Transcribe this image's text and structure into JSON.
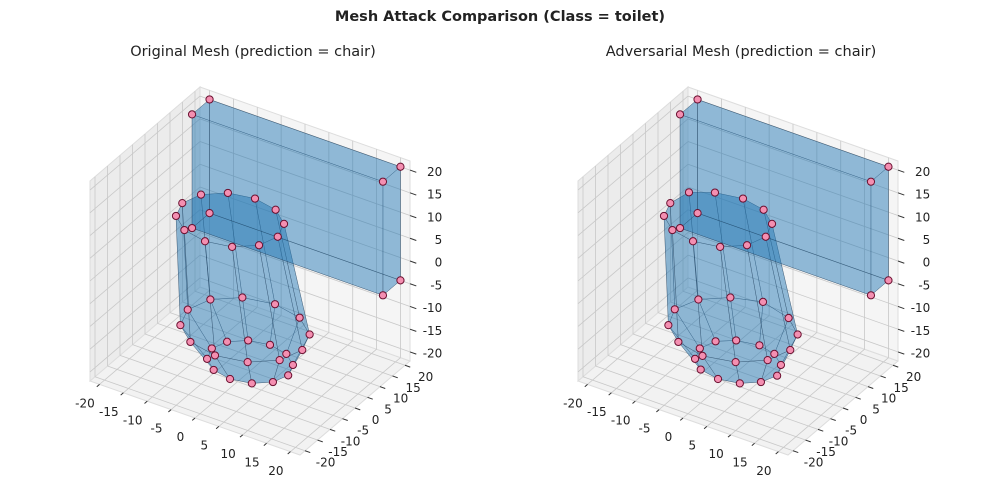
{
  "title": "Mesh Attack Comparison (Class = toilet)",
  "chart_data": [
    {
      "type": "scatter3d",
      "title": "Original Mesh (prediction = chair)",
      "color": "#f48fb1",
      "edgecolor": "#6b1030",
      "mesh_color": "#1f77b4",
      "x": [
        8,
        6.9,
        4,
        0,
        -4,
        -6.9,
        -8,
        -6.9,
        -4,
        0,
        4,
        6.9,
        12,
        10.4,
        6,
        0,
        -6,
        -10.4,
        -12,
        -10.4,
        -6,
        0,
        6,
        10.4,
        10,
        8.7,
        5,
        0,
        -5,
        -8.7,
        -10,
        -8.7,
        -5,
        0,
        5,
        8.7,
        -20,
        20,
        20,
        -20,
        -20,
        20,
        20,
        -20
      ],
      "y": [
        0,
        4,
        6.9,
        8,
        6.9,
        4,
        0,
        -4,
        -6.9,
        -8,
        -6.9,
        -4,
        -2,
        4,
        8.4,
        10,
        8.4,
        4,
        -2,
        -8,
        -12.4,
        -14,
        -12.4,
        -8,
        -8,
        -3,
        0.7,
        2,
        0.7,
        -3,
        -8,
        -13,
        -16.7,
        -18,
        -16.7,
        -13,
        15,
        15,
        22,
        22,
        15,
        15,
        22,
        22
      ],
      "z": [
        -20,
        -20,
        -20,
        -20,
        -20,
        -20,
        -20,
        -20,
        -20,
        -20,
        -20,
        -20,
        -12,
        -12,
        -12,
        -12,
        -12,
        -12,
        -12,
        -12,
        -12,
        -12,
        -12,
        -12,
        15,
        15,
        15,
        15,
        15,
        15,
        15,
        15,
        15,
        15,
        15,
        15,
        -5,
        -5,
        -5,
        -5,
        20,
        20,
        20,
        20
      ],
      "xlim": [
        -22,
        22
      ],
      "ylim": [
        -22,
        22
      ],
      "zlim": [
        -22,
        22
      ],
      "xticks": [
        -20,
        -15,
        -10,
        -5,
        0,
        5,
        10,
        15,
        20
      ],
      "yticks": [
        -20,
        -15,
        -10,
        -5,
        0,
        5,
        10,
        15,
        20
      ],
      "zticks": [
        -20,
        -15,
        -10,
        -5,
        0,
        5,
        10,
        15,
        20
      ]
    },
    {
      "type": "scatter3d",
      "title": "Adversarial Mesh (prediction = chair)",
      "color": "#f48fb1",
      "edgecolor": "#6b1030",
      "mesh_color": "#1f77b4",
      "x": [
        8.2,
        6.9,
        4,
        0.3,
        -4,
        -6.9,
        -8,
        -6.9,
        -4.2,
        0,
        4,
        6.9,
        12,
        10.4,
        6.2,
        0,
        -6,
        -10.4,
        -12.2,
        -10.4,
        -6,
        0,
        6,
        10.4,
        10,
        8.7,
        5,
        0,
        -5.2,
        -8.7,
        -10,
        -8.7,
        -5,
        0,
        5,
        8.7,
        -20,
        20,
        20,
        -20,
        -20,
        20,
        20,
        -20
      ],
      "y": [
        0,
        4,
        6.9,
        8,
        6.9,
        4.2,
        0,
        -4,
        -6.9,
        -8,
        -6.9,
        -4,
        -2,
        4,
        8.4,
        10,
        8.4,
        4,
        -2,
        -8,
        -12.4,
        -14.2,
        -12.4,
        -8,
        -8,
        -3,
        0.7,
        2,
        0.7,
        -3,
        -8,
        -13,
        -16.7,
        -18,
        -16.7,
        -13,
        15,
        15,
        22,
        22,
        15,
        15,
        22,
        22
      ],
      "z": [
        -20,
        -20,
        -20,
        -20,
        -20,
        -20,
        -20,
        -20,
        -20,
        -20,
        -20,
        -20,
        -12,
        -12,
        -12,
        -11.5,
        -12,
        -12,
        -12,
        -12,
        -12,
        -12,
        -12,
        -12,
        15,
        15,
        15,
        15,
        15,
        15.5,
        15,
        15,
        15,
        15,
        15,
        15,
        -5,
        -5,
        -5,
        -5,
        20,
        20,
        20,
        20
      ],
      "xlim": [
        -22,
        22
      ],
      "ylim": [
        -22,
        22
      ],
      "zlim": [
        -22,
        22
      ],
      "xticks": [
        -20,
        -15,
        -10,
        -5,
        0,
        5,
        10,
        15,
        20
      ],
      "yticks": [
        -20,
        -15,
        -10,
        -5,
        0,
        5,
        10,
        15,
        20
      ],
      "zticks": [
        -20,
        -15,
        -10,
        -5,
        0,
        5,
        10,
        15,
        20
      ]
    }
  ]
}
